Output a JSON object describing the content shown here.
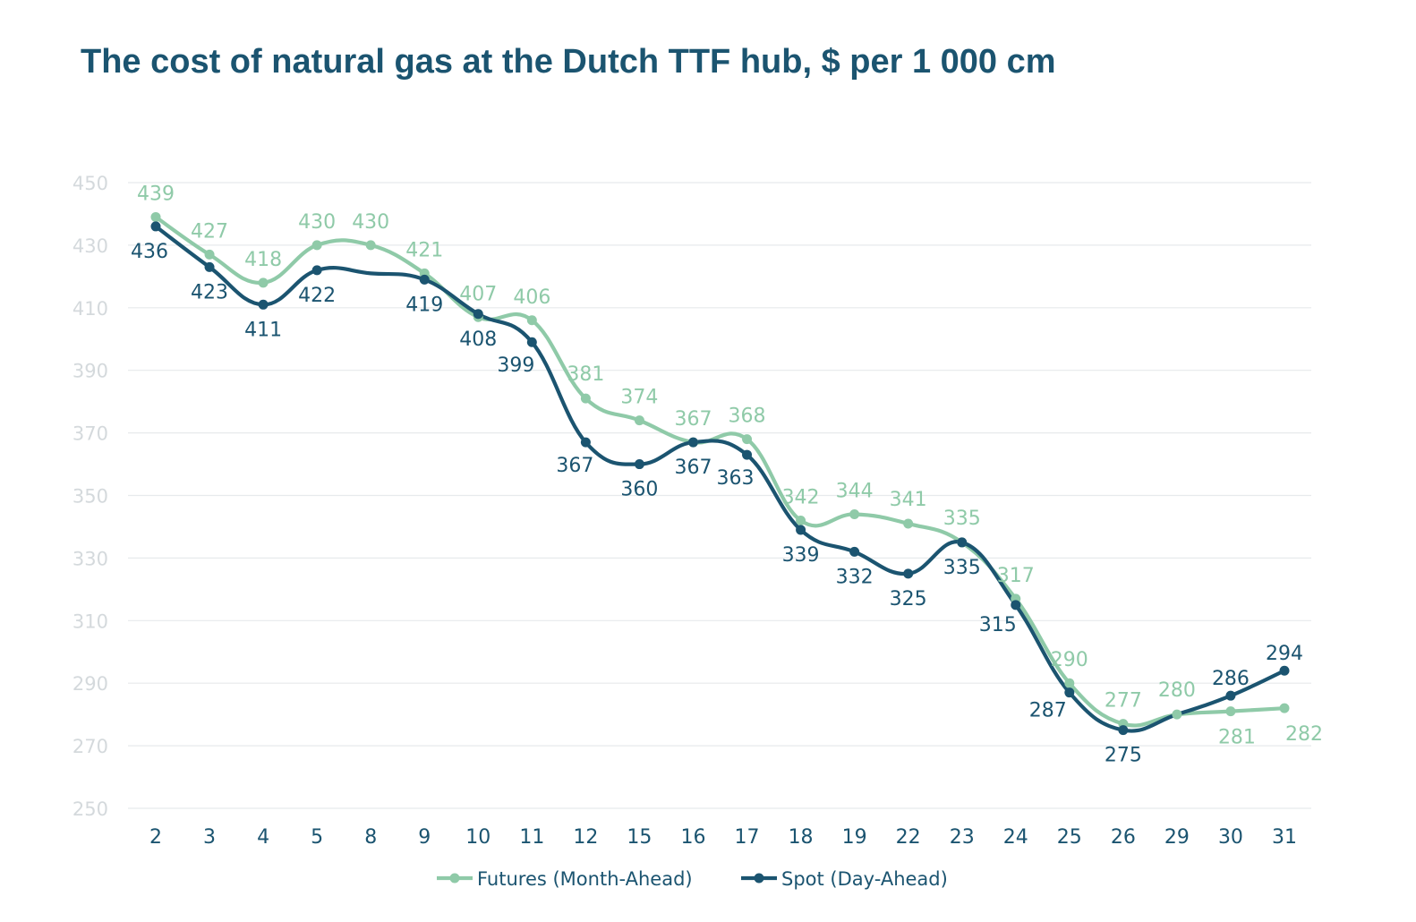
{
  "title": "The cost of natural gas at the Dutch TTF hub, $ per 1 000 cm",
  "chart_data": {
    "type": "line",
    "title": "The cost of natural gas at the Dutch TTF hub, $ per 1 000 cm",
    "xlabel": "",
    "ylabel": "",
    "categories": [
      "2",
      "3",
      "4",
      "5",
      "8",
      "9",
      "10",
      "11",
      "12",
      "15",
      "16",
      "17",
      "18",
      "19",
      "22",
      "23",
      "24",
      "25",
      "26",
      "29",
      "30",
      "31"
    ],
    "ylim": [
      250,
      450
    ],
    "yticks": [
      "250",
      "270",
      "290",
      "310",
      "330",
      "350",
      "370",
      "390",
      "410",
      "430",
      "450"
    ],
    "grid": true,
    "legend_position": "bottom",
    "series": [
      {
        "name": "Futures (Month-Ahead)",
        "color": "#8fcaa8",
        "values": [
          439,
          427,
          418,
          430,
          430,
          421,
          407,
          406,
          381,
          374,
          367,
          368,
          342,
          344,
          341,
          335,
          317,
          290,
          277,
          280,
          281,
          282
        ]
      },
      {
        "name": "Spot (Day-Ahead)",
        "color": "#1b5470",
        "values": [
          436,
          423,
          411,
          422,
          null,
          419,
          408,
          399,
          367,
          360,
          367,
          363,
          339,
          332,
          325,
          335,
          315,
          287,
          275,
          null,
          286,
          294
        ],
        "plotted_values": [
          436,
          423,
          411,
          422,
          421,
          419,
          408,
          399,
          367,
          360,
          367,
          363,
          339,
          332,
          325,
          335,
          315,
          287,
          275,
          280,
          286,
          294
        ]
      }
    ]
  }
}
